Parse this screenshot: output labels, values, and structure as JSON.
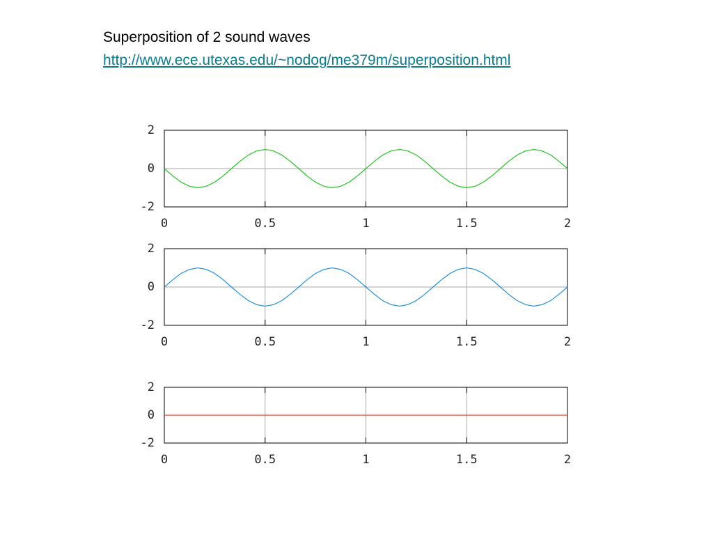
{
  "title": "Superposition of 2 sound waves",
  "link": "http://www.ece.utexas.edu/~nodog/me379m/superposition.html",
  "chart_data": [
    {
      "type": "line",
      "color": "#1fc41f",
      "x": [
        0,
        0.042,
        0.083,
        0.125,
        0.167,
        0.208,
        0.25,
        0.292,
        0.333,
        0.375,
        0.417,
        0.458,
        0.5,
        0.542,
        0.583,
        0.625,
        0.667,
        0.708,
        0.75,
        0.792,
        0.833,
        0.875,
        0.917,
        0.958,
        1,
        1.042,
        1.083,
        1.125,
        1.167,
        1.208,
        1.25,
        1.292,
        1.333,
        1.375,
        1.417,
        1.458,
        1.5,
        1.542,
        1.583,
        1.625,
        1.667,
        1.708,
        1.75,
        1.792,
        1.833,
        1.875,
        1.917,
        1.958,
        2
      ],
      "values": [
        0,
        -0.38,
        -0.71,
        -0.92,
        -1,
        -0.92,
        -0.71,
        -0.38,
        0,
        0.38,
        0.71,
        0.92,
        1,
        0.92,
        0.71,
        0.38,
        0,
        -0.38,
        -0.71,
        -0.92,
        -1,
        -0.92,
        -0.71,
        -0.38,
        0,
        0.38,
        0.71,
        0.92,
        1,
        0.92,
        0.71,
        0.38,
        0,
        -0.38,
        -0.71,
        -0.92,
        -1,
        -0.92,
        -0.71,
        -0.38,
        0,
        0.38,
        0.71,
        0.92,
        1,
        0.92,
        0.71,
        0.38,
        0
      ],
      "xlim": [
        0,
        2
      ],
      "ylim": [
        -2,
        2
      ],
      "xticks": [
        0,
        0.5,
        1,
        1.5,
        2
      ],
      "yticks": [
        -2,
        0,
        2
      ],
      "grid": true
    },
    {
      "type": "line",
      "color": "#1f8fe0",
      "x": [
        0,
        0.042,
        0.083,
        0.125,
        0.167,
        0.208,
        0.25,
        0.292,
        0.333,
        0.375,
        0.417,
        0.458,
        0.5,
        0.542,
        0.583,
        0.625,
        0.667,
        0.708,
        0.75,
        0.792,
        0.833,
        0.875,
        0.917,
        0.958,
        1,
        1.042,
        1.083,
        1.125,
        1.167,
        1.208,
        1.25,
        1.292,
        1.333,
        1.375,
        1.417,
        1.458,
        1.5,
        1.542,
        1.583,
        1.625,
        1.667,
        1.708,
        1.75,
        1.792,
        1.833,
        1.875,
        1.917,
        1.958,
        2
      ],
      "values": [
        0,
        0.38,
        0.71,
        0.92,
        1,
        0.92,
        0.71,
        0.38,
        0,
        -0.38,
        -0.71,
        -0.92,
        -1,
        -0.92,
        -0.71,
        -0.38,
        0,
        0.38,
        0.71,
        0.92,
        1,
        0.92,
        0.71,
        0.38,
        0,
        -0.38,
        -0.71,
        -0.92,
        -1,
        -0.92,
        -0.71,
        -0.38,
        0,
        0.38,
        0.71,
        0.92,
        1,
        0.92,
        0.71,
        0.38,
        0,
        -0.38,
        -0.71,
        -0.92,
        -1,
        -0.92,
        -0.71,
        -0.38,
        0
      ],
      "xlim": [
        0,
        2
      ],
      "ylim": [
        -2,
        2
      ],
      "xticks": [
        0,
        0.5,
        1,
        1.5,
        2
      ],
      "yticks": [
        -2,
        0,
        2
      ],
      "grid": true
    },
    {
      "type": "line",
      "color": "#e8412c",
      "x": [
        0,
        2
      ],
      "values": [
        0,
        0
      ],
      "xlim": [
        0,
        2
      ],
      "ylim": [
        -2,
        2
      ],
      "xticks": [
        0,
        0.5,
        1,
        1.5,
        2
      ],
      "yticks": [
        -2,
        0,
        2
      ],
      "grid": true
    }
  ]
}
